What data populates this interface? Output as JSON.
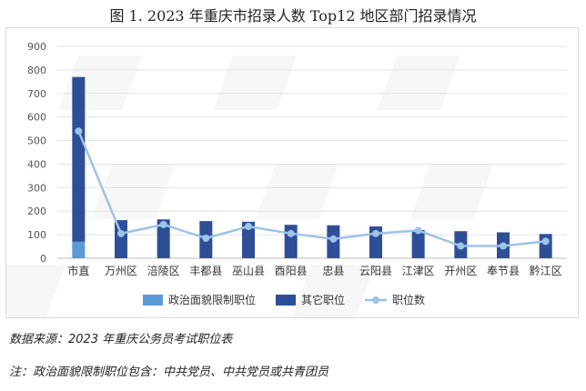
{
  "chart_data": {
    "type": "bar",
    "title": "图 1. 2023 年重庆市招录人数 Top12 地区部门招录情况",
    "categories": [
      "市直",
      "万州区",
      "涪陵区",
      "丰都县",
      "巫山县",
      "酉阳县",
      "忠县",
      "云阳县",
      "江津区",
      "开州区",
      "奉节县",
      "黔江区"
    ],
    "series": [
      {
        "name": "政治面貌限制职位",
        "kind": "stacked-bar",
        "color": "#5b9bd5",
        "values": [
          70,
          0,
          0,
          0,
          0,
          0,
          0,
          0,
          0,
          0,
          0,
          0
        ]
      },
      {
        "name": "其它职位",
        "kind": "stacked-bar",
        "color": "#2e4f97",
        "values": [
          700,
          162,
          165,
          158,
          155,
          142,
          140,
          135,
          120,
          115,
          110,
          103
        ]
      },
      {
        "name": "职位数",
        "kind": "line",
        "color": "#9dc3e6",
        "values": [
          540,
          105,
          143,
          85,
          135,
          105,
          82,
          105,
          118,
          52,
          52,
          72
        ]
      }
    ],
    "ylim": [
      0,
      900
    ],
    "yticks": [
      0,
      100,
      200,
      300,
      400,
      500,
      600,
      700,
      800,
      900
    ],
    "grid": true,
    "legend_position": "bottom"
  },
  "notes": {
    "source": "数据来源：2023 年重庆公务员考试职位表",
    "footnote": "注：政治面貌限制职位包含：中共党员、中共党员或共青团员"
  }
}
